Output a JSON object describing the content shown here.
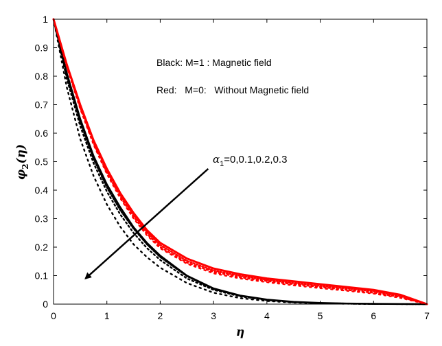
{
  "chart_data": {
    "type": "line",
    "xlabel": "η",
    "ylabel": {
      "symbol": "φ",
      "sub": "2",
      "arg": "(η)"
    },
    "xlim": [
      0,
      7
    ],
    "ylim": [
      0,
      1
    ],
    "xticks": [
      "0",
      "1",
      "2",
      "3",
      "4",
      "5",
      "6",
      "7"
    ],
    "yticks": [
      "0",
      "0.1",
      "0.2",
      "0.3",
      "0.4",
      "0.5",
      "0.6",
      "0.7",
      "0.8",
      "0.9",
      "1"
    ],
    "grid": false,
    "notes": [
      "Black: M=1 :   Magnetic field",
      "Red:   M=0:   Without Magnetic field"
    ],
    "annotation": {
      "symbol": "α",
      "sub": "1",
      "text": "=0,0.1,0.2,0.3"
    },
    "colors": {
      "M1": "#000000",
      "M0": "#ff0000"
    },
    "x": [
      0,
      0.25,
      0.5,
      0.75,
      1,
      1.25,
      1.5,
      1.75,
      2,
      2.5,
      3,
      3.5,
      4,
      4.5,
      5,
      5.5,
      6,
      6.5,
      7
    ],
    "series": [
      {
        "group": "M1",
        "alpha1": "0",
        "style": "solid",
        "values": [
          1,
          0.81,
          0.65,
          0.52,
          0.42,
          0.34,
          0.27,
          0.215,
          0.17,
          0.1,
          0.055,
          0.03,
          0.016,
          0.008,
          0.004,
          0.002,
          0.001,
          0.0005,
          0
        ]
      },
      {
        "group": "M1",
        "alpha1": "0.1",
        "style": "dotted",
        "values": [
          1,
          0.8,
          0.64,
          0.51,
          0.41,
          0.33,
          0.265,
          0.21,
          0.165,
          0.098,
          0.053,
          0.029,
          0.015,
          0.007,
          0.0035,
          0.0018,
          0.0009,
          0.0004,
          0
        ]
      },
      {
        "group": "M1",
        "alpha1": "0.2",
        "style": "dotted",
        "values": [
          1,
          0.79,
          0.625,
          0.495,
          0.395,
          0.315,
          0.25,
          0.197,
          0.155,
          0.09,
          0.05,
          0.027,
          0.014,
          0.007,
          0.0033,
          0.0016,
          0.0008,
          0.0004,
          0
        ]
      },
      {
        "group": "M1",
        "alpha1": "0.3",
        "style": "dotted",
        "values": [
          1,
          0.76,
          0.58,
          0.45,
          0.35,
          0.272,
          0.21,
          0.165,
          0.128,
          0.074,
          0.04,
          0.021,
          0.011,
          0.0055,
          0.0027,
          0.0013,
          0.0006,
          0.0003,
          0
        ]
      },
      {
        "group": "M0",
        "alpha1": "0",
        "style": "solid",
        "values": [
          1,
          0.84,
          0.7,
          0.575,
          0.475,
          0.39,
          0.32,
          0.26,
          0.215,
          0.16,
          0.125,
          0.105,
          0.09,
          0.08,
          0.07,
          0.06,
          0.05,
          0.033,
          0
        ]
      },
      {
        "group": "M0",
        "alpha1": "0.1",
        "style": "dotted",
        "values": [
          1,
          0.838,
          0.695,
          0.57,
          0.468,
          0.383,
          0.313,
          0.253,
          0.207,
          0.152,
          0.118,
          0.099,
          0.085,
          0.074,
          0.064,
          0.055,
          0.045,
          0.028,
          0
        ]
      },
      {
        "group": "M0",
        "alpha1": "0.2",
        "style": "dotted",
        "values": [
          1,
          0.835,
          0.69,
          0.565,
          0.462,
          0.377,
          0.306,
          0.247,
          0.2,
          0.146,
          0.113,
          0.094,
          0.081,
          0.07,
          0.06,
          0.05,
          0.04,
          0.025,
          0
        ]
      },
      {
        "group": "M0",
        "alpha1": "0.3",
        "style": "dotted",
        "values": [
          1,
          0.832,
          0.686,
          0.56,
          0.457,
          0.372,
          0.301,
          0.242,
          0.196,
          0.142,
          0.108,
          0.09,
          0.077,
          0.066,
          0.056,
          0.047,
          0.037,
          0.022,
          0
        ]
      }
    ],
    "arrow": {
      "from": [
        2.9,
        0.475
      ],
      "to": [
        0.6,
        0.09
      ]
    }
  }
}
